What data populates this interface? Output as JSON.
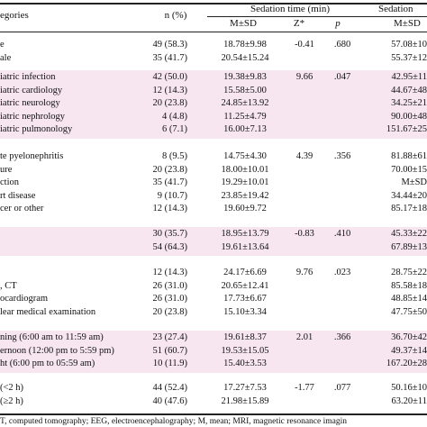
{
  "header": {
    "categories": "egories",
    "n_pct": "n (%)",
    "sedation_time": "Sedation time (min)",
    "sedation_right": "Sedation",
    "msd": "M±SD",
    "z": "Z*",
    "p": "p",
    "msd_right": "M±SD"
  },
  "groups": [
    {
      "label": "",
      "rows": [
        {
          "label": "e",
          "n": "49 (58.3)",
          "msd": "18.78±9.98",
          "z": "-0.41",
          "p": ".680",
          "right": "57.08±10"
        },
        {
          "label": "ale",
          "n": "35 (41.7)",
          "msd": "20.54±15.24",
          "z": "",
          "p": "",
          "right": "55.37±12"
        }
      ]
    },
    {
      "label": "",
      "rows": [
        {
          "label": "iatric infection",
          "n": "42 (50.0)",
          "msd": "19.38±9.83",
          "z": "9.66",
          "p": ".047",
          "right": "42.95±11"
        },
        {
          "label": "iatric cardiology",
          "n": "12 (14.3)",
          "msd": "15.58±5.00",
          "z": "",
          "p": "",
          "right": "44.67±48"
        },
        {
          "label": "iatric neurology",
          "n": "20 (23.8)",
          "msd": "24.85±13.92",
          "z": "",
          "p": "",
          "right": "34.25±21"
        },
        {
          "label": "iatric nephrology",
          "n": "4 (4.8)",
          "msd": "11.25±4.79",
          "z": "",
          "p": "",
          "right": "90.00±48"
        },
        {
          "label": "iatric pulmonology",
          "n": "6 (7.1)",
          "msd": "16.00±7.13",
          "z": "",
          "p": "",
          "right": "151.67±25"
        }
      ]
    },
    {
      "label": "",
      "rows": [
        {
          "label": "te pyelonephritis",
          "n": "8 (9.5)",
          "msd": "14.75±4.30",
          "z": "4.39",
          "p": ".356",
          "right": "81.88±61"
        },
        {
          "label": "ure",
          "n": "20 (23.8)",
          "msd": "18.00±10.01",
          "z": "",
          "p": "",
          "right": "70.00±15"
        },
        {
          "label": "ction",
          "n": "35 (41.7)",
          "msd": "19.29±10.01",
          "z": "",
          "p": "",
          "right": "M±SD"
        },
        {
          "label": "rt disease",
          "n": "9 (10.7)",
          "msd": "23.85±19.42",
          "z": "",
          "p": "",
          "right": "34.44±20"
        },
        {
          "label": "cer or other",
          "n": "12 (14.3)",
          "msd": "19.60±9.72",
          "z": "",
          "p": "",
          "right": "85.17±18"
        }
      ]
    },
    {
      "label": "",
      "rows": [
        {
          "label": "",
          "n": "30 (35.7)",
          "msd": "18.95±13.79",
          "z": "-0.83",
          "p": ".410",
          "right": "45.33±22"
        },
        {
          "label": "",
          "n": "54 (64.3)",
          "msd": "19.61±13.64",
          "z": "",
          "p": "",
          "right": "67.89±13"
        }
      ]
    },
    {
      "label": "",
      "rows": [
        {
          "label": "",
          "n": "12 (14.3)",
          "msd": "24.17±6.69",
          "z": "9.76",
          "p": ".023",
          "right": "28.75±22"
        },
        {
          "label": ", CT",
          "n": "26 (31.0)",
          "msd": "20.65±12.41",
          "z": "",
          "p": "",
          "right": "85.58±18"
        },
        {
          "label": "ocardiogram",
          "n": "26 (31.0)",
          "msd": "17.73±6.67",
          "z": "",
          "p": "",
          "right": "48.85±14"
        },
        {
          "label": "lear medical examination",
          "n": "20 (23.8)",
          "msd": "15.10±3.34",
          "z": "",
          "p": "",
          "right": "47.75±50"
        }
      ]
    },
    {
      "label": "",
      "rows": [
        {
          "label": "ning (6:00 am to 11:59 am)",
          "n": "23 (27.4)",
          "msd": "19.61±8.37",
          "z": "2.01",
          "p": ".366",
          "right": "36.70±42"
        },
        {
          "label": "ernoon (12:00 pm to 5:59 pm)",
          "n": "51 (60.7)",
          "msd": "19.53±15.05",
          "z": "",
          "p": "",
          "right": "49.37±14"
        },
        {
          "label": "ht (6:00 pm to 05:59 am)",
          "n": "10 (11.9)",
          "msd": "15.40±3.53",
          "z": "",
          "p": "",
          "right": "167.20±28"
        }
      ]
    },
    {
      "label": "",
      "rows": [
        {
          "label": "(<2 h)",
          "n": "44 (52.4)",
          "msd": "17.27±7.53",
          "z": "-1.77",
          "p": ".077",
          "right": "50.16±10"
        },
        {
          "label": "(≥2 h)",
          "n": "40 (47.6)",
          "msd": "21.98±15.89",
          "z": "",
          "p": "",
          "right": "63.20±11"
        }
      ]
    }
  ],
  "footnote": "T, computed tomography; EEG, electroencephalography; M, mean; MRI, magnetic resonance imagin"
}
